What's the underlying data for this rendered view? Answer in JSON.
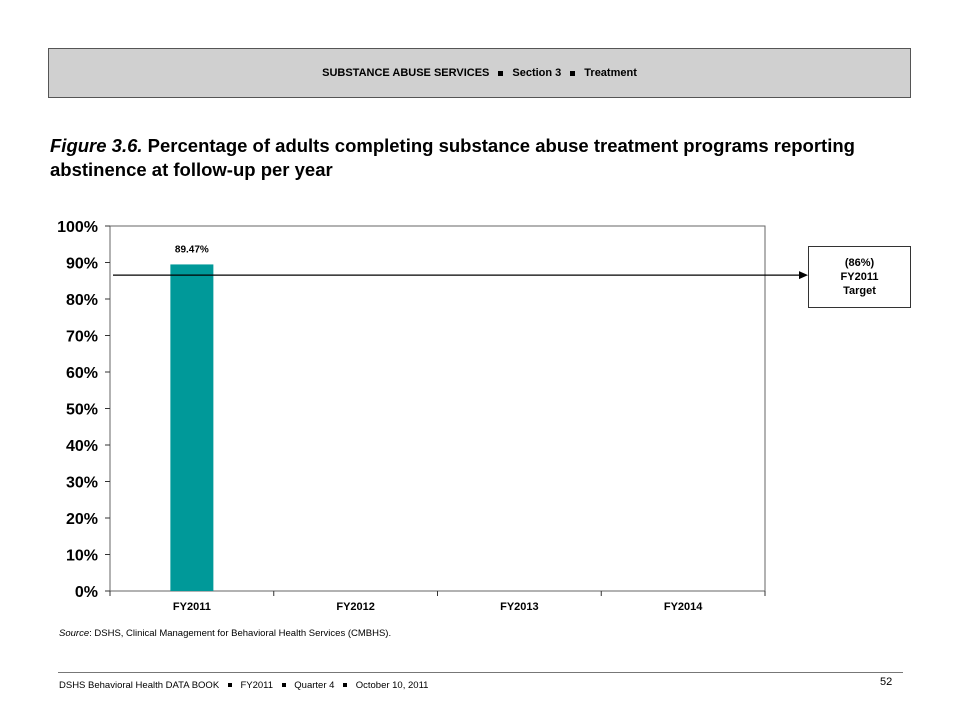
{
  "header": {
    "section": "SUBSTANCE ABUSE SERVICES",
    "part": "Section 3",
    "topic": "Treatment"
  },
  "figure": {
    "number": "Figure 3.6.",
    "title": "Percentage of adults completing substance abuse treatment programs reporting abstinence at follow-up per year"
  },
  "target_box": {
    "value": "(86%)",
    "year": "FY2011",
    "label": "Target"
  },
  "source": {
    "label": "Source",
    "text": ": DSHS, Clinical Management for Behavioral Health Services (CMBHS)."
  },
  "footer": {
    "book": "DSHS Behavioral Health DATA BOOK",
    "year": "FY2011",
    "quarter": "Quarter 4",
    "date": "October 10, 2011",
    "page": "52"
  },
  "chart_data": {
    "type": "bar",
    "categories": [
      "FY2011",
      "FY2012",
      "FY2013",
      "FY2014"
    ],
    "values": [
      89.47,
      null,
      null,
      null
    ],
    "data_labels": [
      "89.47%",
      "",
      "",
      ""
    ],
    "ylim": [
      0,
      100
    ],
    "yticks": [
      0,
      10,
      20,
      30,
      40,
      50,
      60,
      70,
      80,
      90,
      100
    ],
    "ytick_labels": [
      "0%",
      "10%",
      "20%",
      "30%",
      "40%",
      "50%",
      "60%",
      "70%",
      "80%",
      "90%",
      "100%"
    ],
    "target": 86,
    "grid": false,
    "bar_color": "#009999"
  }
}
